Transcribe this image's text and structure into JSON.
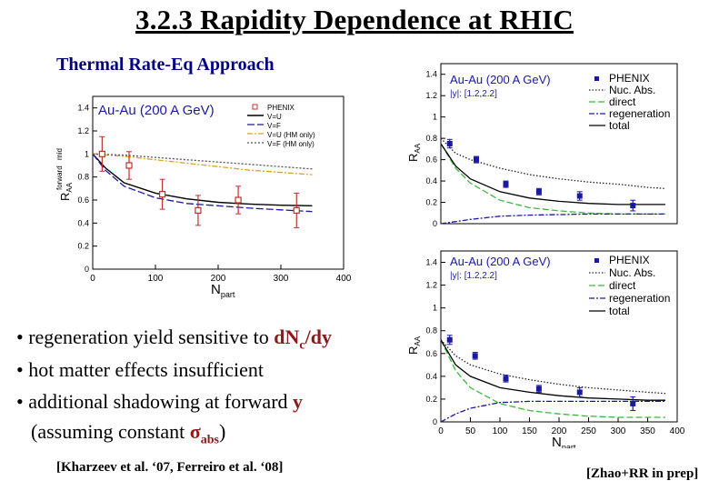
{
  "slide": {
    "title": "3.2.3  Rapidity Dependence at RHIC",
    "left_subtitle": "Thermal Rate-Eq Approach",
    "bullets": [
      {
        "marker": "•",
        "text": " regeneration yield sensitive to ",
        "highlight": "d",
        "highlight2": "N",
        "sub": "c",
        "highlight3": "/dy"
      },
      {
        "marker": "•",
        "text": " hot matter effects insufficient"
      },
      {
        "marker": "•",
        "text": " additional shadowing at forward ",
        "highlight": "y"
      },
      {
        "text": "(assuming constant ",
        "sigma": "σ",
        "sub": "abs",
        "close": ")"
      }
    ],
    "ref_left": "[Kharzeev et al. ‘07, Ferreiro et al. ‘08]",
    "ref_right": "[Zhao+RR in prep]"
  },
  "colors": {
    "brown": "#8b1a1a",
    "navy": "#000080",
    "phenix_red": "#c03030",
    "phenix_blue": "#1a1aa0",
    "green": "#3cb83c",
    "orange": "#e3a020"
  },
  "chart_data": [
    {
      "type": "scatter",
      "id": "left-plot",
      "label": "Au-Au (200 A GeV)",
      "xlabel": "N",
      "xlabel_sub": "part",
      "ylabel": "R",
      "ylabel_sub": "AA",
      "ylabel_sup": "forward",
      "ylabel_sup2": "mid",
      "xlim": [
        0,
        400
      ],
      "ylim": [
        0,
        1.5
      ],
      "xticks": [
        0,
        100,
        200,
        300,
        400
      ],
      "yticks": [
        0,
        0.2,
        0.4,
        0.6,
        0.8,
        1,
        1.2,
        1.4
      ],
      "ytick_labels": [
        "0",
        "0.2",
        "0.4",
        "0.6",
        "0.8",
        "1",
        "1.2",
        "1.4"
      ],
      "legend": [
        "PHENIX",
        "V=U",
        "V=F",
        "V=U (HM only)",
        "V=F (HM only)"
      ],
      "points": {
        "x": [
          15,
          58,
          111,
          168,
          232,
          325
        ],
        "y": [
          1.0,
          0.9,
          0.65,
          0.51,
          0.6,
          0.51
        ],
        "err": [
          0.15,
          0.12,
          0.13,
          0.13,
          0.12,
          0.15
        ]
      },
      "series": [
        {
          "name": "V=U",
          "x": [
            0,
            20,
            50,
            100,
            150,
            200,
            250,
            300,
            350
          ],
          "y": [
            1.0,
            0.88,
            0.75,
            0.66,
            0.61,
            0.58,
            0.565,
            0.555,
            0.55
          ]
        },
        {
          "name": "V=F",
          "x": [
            0,
            20,
            50,
            100,
            150,
            200,
            250,
            300,
            350
          ],
          "y": [
            1.0,
            0.86,
            0.72,
            0.62,
            0.57,
            0.55,
            0.53,
            0.515,
            0.5
          ]
        },
        {
          "name": "V=U (HM only)",
          "x": [
            0,
            50,
            100,
            150,
            200,
            250,
            300,
            350
          ],
          "y": [
            1.0,
            0.98,
            0.95,
            0.92,
            0.89,
            0.86,
            0.84,
            0.82
          ]
        },
        {
          "name": "V=F (HM only)",
          "x": [
            0,
            50,
            100,
            150,
            200,
            250,
            300,
            350
          ],
          "y": [
            1.0,
            0.99,
            0.97,
            0.95,
            0.93,
            0.91,
            0.89,
            0.87
          ]
        }
      ]
    },
    {
      "type": "line",
      "id": "right-top-plot",
      "label": "Au-Au (200 A GeV)",
      "sublabel": "|y|: [1.2,2.2]",
      "xlabel": "",
      "ylabel": "R",
      "ylabel_sub": "AA",
      "xlim": [
        0,
        400
      ],
      "ylim": [
        0,
        1.5
      ],
      "yticks": [
        0,
        0.2,
        0.4,
        0.6,
        0.8,
        1,
        1.2,
        1.4
      ],
      "ytick_labels": [
        "0",
        "0.2",
        "0.4",
        "0.6",
        "0.8",
        "1",
        "1.2",
        "1.4"
      ],
      "legend": [
        "PHENIX",
        "Nuc. Abs.",
        "direct",
        "regeneration",
        "total"
      ],
      "points": {
        "x": [
          15,
          60,
          110,
          166,
          235,
          325
        ],
        "y": [
          0.75,
          0.6,
          0.37,
          0.3,
          0.26,
          0.17
        ],
        "err": [
          0.04,
          0.03,
          0.03,
          0.03,
          0.04,
          0.05
        ]
      },
      "series": [
        {
          "name": "Nuc. Abs.",
          "x": [
            0,
            25,
            50,
            100,
            150,
            200,
            250,
            300,
            350,
            380
          ],
          "y": [
            0.8,
            0.66,
            0.6,
            0.52,
            0.46,
            0.42,
            0.39,
            0.37,
            0.34,
            0.33
          ]
        },
        {
          "name": "direct",
          "x": [
            0,
            25,
            50,
            100,
            150,
            200,
            250,
            300,
            350,
            380
          ],
          "y": [
            0.75,
            0.52,
            0.38,
            0.22,
            0.15,
            0.12,
            0.1,
            0.09,
            0.09,
            0.09
          ]
        },
        {
          "name": "regeneration",
          "x": [
            0,
            25,
            50,
            100,
            150,
            200,
            250,
            300,
            350,
            380
          ],
          "y": [
            0.0,
            0.02,
            0.04,
            0.07,
            0.08,
            0.085,
            0.09,
            0.09,
            0.09,
            0.09
          ]
        },
        {
          "name": "total",
          "x": [
            0,
            25,
            50,
            100,
            150,
            200,
            250,
            300,
            350,
            380
          ],
          "y": [
            0.75,
            0.54,
            0.42,
            0.3,
            0.24,
            0.21,
            0.19,
            0.18,
            0.18,
            0.18
          ]
        }
      ]
    },
    {
      "type": "line",
      "id": "right-bottom-plot",
      "label": "Au-Au (200 A GeV)",
      "sublabel": "|y|: [1.2,2.2]",
      "xlabel": "N",
      "xlabel_sub": "part",
      "ylabel": "R",
      "ylabel_sub": "AA",
      "xlim": [
        0,
        400
      ],
      "ylim": [
        0,
        1.5
      ],
      "xticks": [
        0,
        50,
        100,
        150,
        200,
        250,
        300,
        350,
        400
      ],
      "yticks": [
        0,
        0.2,
        0.4,
        0.6,
        0.8,
        1,
        1.2,
        1.4
      ],
      "ytick_labels": [
        "0",
        "0.2",
        "0.4",
        "0.6",
        "0.8",
        "1",
        "1.2",
        "1.4"
      ],
      "legend": [
        "PHENIX",
        "Nuc. Abs.",
        "direct",
        "regeneration",
        "total"
      ],
      "points": {
        "x": [
          15,
          58,
          110,
          166,
          235,
          325
        ],
        "y": [
          0.72,
          0.58,
          0.38,
          0.29,
          0.26,
          0.16
        ],
        "err": [
          0.04,
          0.03,
          0.03,
          0.03,
          0.04,
          0.06
        ]
      },
      "series": [
        {
          "name": "Nuc. Abs.",
          "x": [
            0,
            25,
            50,
            100,
            150,
            200,
            250,
            300,
            350,
            380
          ],
          "y": [
            0.72,
            0.58,
            0.5,
            0.42,
            0.37,
            0.33,
            0.3,
            0.28,
            0.26,
            0.25
          ]
        },
        {
          "name": "direct",
          "x": [
            0,
            25,
            50,
            100,
            150,
            200,
            250,
            300,
            350,
            380
          ],
          "y": [
            0.72,
            0.45,
            0.3,
            0.16,
            0.1,
            0.07,
            0.05,
            0.04,
            0.04,
            0.04
          ]
        },
        {
          "name": "regeneration",
          "x": [
            0,
            25,
            50,
            100,
            150,
            200,
            250,
            300,
            350,
            380
          ],
          "y": [
            0.0,
            0.07,
            0.12,
            0.17,
            0.18,
            0.18,
            0.18,
            0.18,
            0.18,
            0.18
          ]
        },
        {
          "name": "total",
          "x": [
            0,
            25,
            50,
            100,
            150,
            200,
            250,
            300,
            350,
            380
          ],
          "y": [
            0.72,
            0.5,
            0.4,
            0.3,
            0.26,
            0.23,
            0.21,
            0.2,
            0.19,
            0.19
          ]
        }
      ]
    }
  ]
}
